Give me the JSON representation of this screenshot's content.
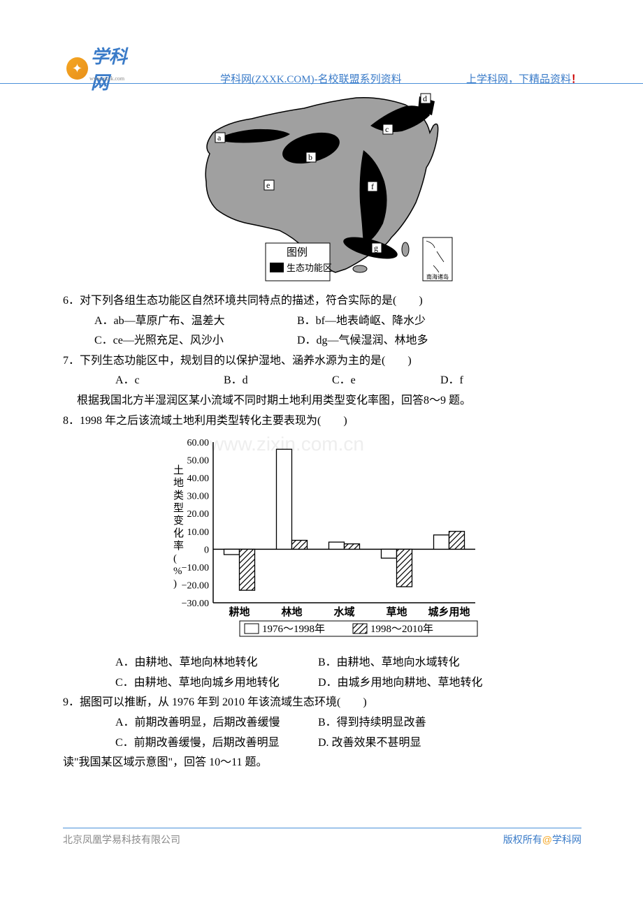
{
  "header": {
    "logo_text": "学科网",
    "logo_sub": "www.zxxk.com",
    "center": "学科网(ZXXK.COM)-名校联盟系列资料",
    "right_a": "上学科网，下精品资料",
    "right_excl": "！"
  },
  "map": {
    "legend_title": "图例",
    "legend_label": "生态功能区",
    "inset_label": "南海诸岛",
    "labels": [
      "a",
      "b",
      "c",
      "d",
      "e",
      "f",
      "g"
    ],
    "outline_color": "#000000",
    "fill_color": "#a0a0a0",
    "eco_color": "#000000"
  },
  "q6": {
    "stem": "6．对下列各组生态功能区自然环境共同特点的描述，符合实际的是(　　)",
    "a": "A．ab—草原广布、温差大",
    "b": "B．bf—地表崎岖、降水少",
    "c": "C．ce—光照充足、风沙小",
    "d": "D．dg—气候湿润、林地多"
  },
  "q7": {
    "stem": "7．下列生态功能区中，规划目的以保护湿地、涵养水源为主的是(　　)",
    "a": "A．c",
    "b": "B．d",
    "c": "C．e",
    "d": "D．f"
  },
  "intro89": "根据我国北方半湿润区某小流域不同时期土地利用类型变化率图，回答8～9 题。",
  "q8": {
    "stem": "8．1998 年之后该流域土地利用类型转化主要表现为(　　)",
    "a": "A．由耕地、草地向林地转化",
    "b": "B．由耕地、草地向水域转化",
    "c": "C．由耕地、草地向城乡用地转化",
    "d": "D．由城乡用地向耕地、草地转化"
  },
  "chart": {
    "y_label": "土地类型变化率(%)",
    "y_ticks": [
      "60.00",
      "50.00",
      "40.00",
      "30.00",
      "20.00",
      "10.00",
      "0",
      "−10.00",
      "−20.00",
      "−30.00"
    ],
    "y_values": [
      60,
      50,
      40,
      30,
      20,
      10,
      0,
      -10,
      -20,
      -30
    ],
    "x_categories": [
      "耕地",
      "林地",
      "水域",
      "草地",
      "城乡用地"
    ],
    "series_a_label": "1976～1998年",
    "series_b_label": "1998～2010年",
    "series_a": [
      -3,
      56,
      4,
      -5,
      8
    ],
    "series_b": [
      -23,
      5,
      3,
      -21,
      10
    ],
    "bar_border": "#000000",
    "bar_fill_a": "#ffffff",
    "bar_fill_b_pattern": "hatch",
    "axis_color": "#000000",
    "font_size": 15
  },
  "q9": {
    "stem": "9．据图可以推断，从 1976 年到 2010 年该流域生态环境(　　)",
    "a": "A．前期改善明显，后期改善缓慢",
    "b": "B．得到持续明显改善",
    "c": "C．前期改善缓慢，后期改善明显",
    "d": "D.  改善效果不甚明显"
  },
  "intro1011": "读\"我国某区域示意图\"，回答 10～11 题。",
  "watermark": "www.zixin.com.cn",
  "footer": {
    "left": "北京凤凰学易科技有限公司",
    "right_a": "版权所有",
    "right_at": "@",
    "right_b": "学科网"
  }
}
